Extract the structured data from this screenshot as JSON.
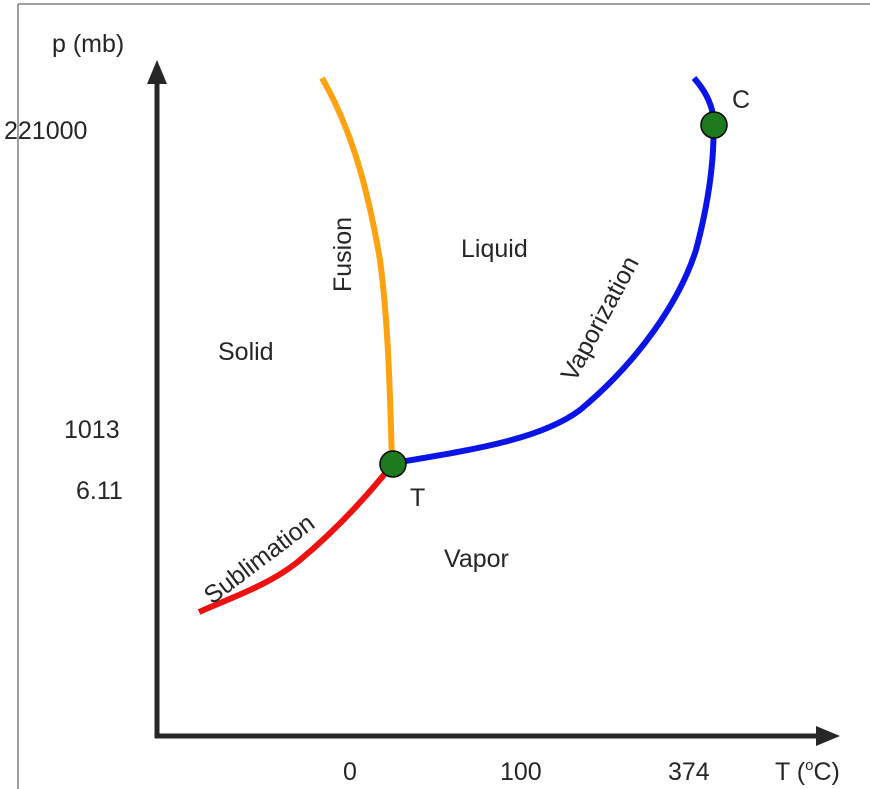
{
  "frame": {
    "border_color": "#7f7f7f"
  },
  "axes": {
    "color": "#262626",
    "y_label": "p (mb)",
    "x_label": "T (",
    "x_label_sup": "o",
    "x_label_end": "C)",
    "y_ticks": [
      "221000",
      "1013",
      "6.11"
    ],
    "x_ticks": [
      "0",
      "100",
      "374"
    ]
  },
  "regions": {
    "solid": "Solid",
    "liquid": "Liquid",
    "vapor": "Vapor"
  },
  "curves": {
    "fusion": {
      "label": "Fusion",
      "color": "#ffa20f"
    },
    "vaporization": {
      "label": "Vaporization",
      "color": "#0a14e6"
    },
    "sublimation": {
      "label": "Sublimation",
      "color": "#ee1111"
    }
  },
  "points": {
    "triple": {
      "label": "T",
      "color": "#1e7a1e"
    },
    "critical": {
      "label": "C",
      "color": "#1e7a1e"
    }
  }
}
